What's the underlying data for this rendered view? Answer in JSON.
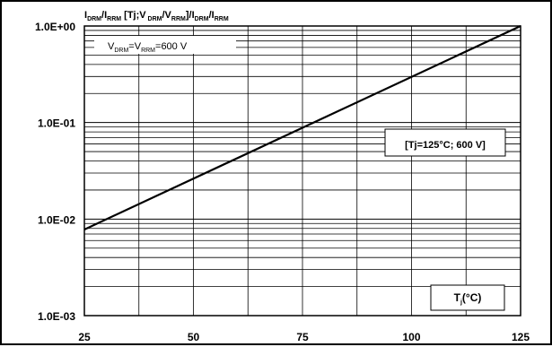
{
  "chart_data": {
    "type": "line",
    "title_parts": [
      {
        "t": "I",
        "sub": false
      },
      {
        "t": "DRM",
        "sub": true
      },
      {
        "t": "/I",
        "sub": false
      },
      {
        "t": "RRM",
        "sub": true
      },
      {
        "t": " [Tj;V",
        "sub": false
      },
      {
        "t": " DRM",
        "sub": true
      },
      {
        "t": "/V",
        "sub": false
      },
      {
        "t": "RRM",
        "sub": true
      },
      {
        "t": "]/I",
        "sub": false
      },
      {
        "t": "DRM",
        "sub": true
      },
      {
        "t": "/I",
        "sub": false
      },
      {
        "t": "RRM",
        "sub": true
      }
    ],
    "xlabel_parts": [
      {
        "t": "T",
        "sub": false
      },
      {
        "t": "j",
        "sub": true
      },
      {
        "t": "(°C)",
        "sub": false
      }
    ],
    "x_scale": "linear",
    "y_scale": "log",
    "xlim": [
      25,
      125
    ],
    "ylim": [
      0.001,
      1
    ],
    "x_ticks": [
      25,
      50,
      75,
      100,
      125
    ],
    "x_tick_labels": [
      "25",
      "50",
      "75",
      "100",
      "125"
    ],
    "y_ticks": [
      0.001,
      0.01,
      0.1,
      1
    ],
    "y_tick_labels": [
      "1.0E-03",
      "1.0E-02",
      "1.0E-01",
      "1.0E+00"
    ],
    "grid": true,
    "annotations": [
      {
        "id": "vdrm",
        "parts": [
          {
            "t": "V",
            "sub": false
          },
          {
            "t": "DRM",
            "sub": true
          },
          {
            "t": "=V",
            "sub": false
          },
          {
            "t": "RRM",
            "sub": true
          },
          {
            "t": "=600 V",
            "sub": false
          }
        ]
      },
      {
        "id": "ref",
        "parts": [
          {
            "t": "[Tj=125°C; 600 V]",
            "sub": false
          }
        ]
      }
    ],
    "series": [
      {
        "x": [
          25,
          125
        ],
        "y": [
          0.0078,
          1.0
        ]
      }
    ],
    "colors": {
      "line": "#000000",
      "grid": "#000000",
      "frame": "#000000"
    }
  }
}
